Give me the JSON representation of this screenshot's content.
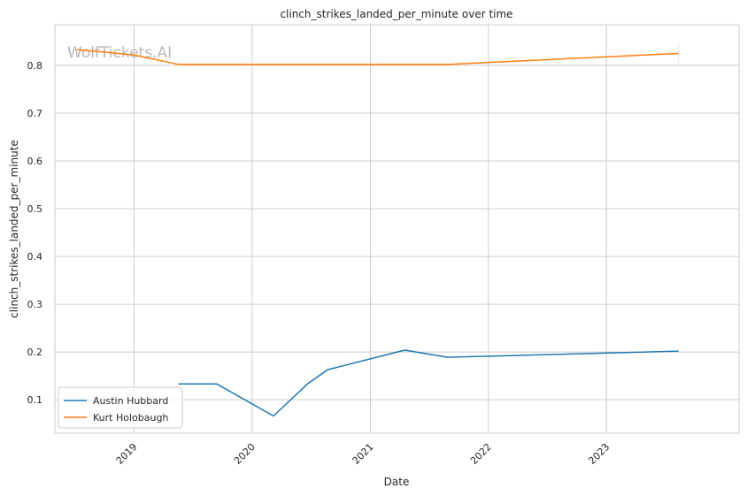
{
  "watermark": "WolfTickets.AI",
  "chart_data": {
    "type": "line",
    "title": "clinch_strikes_landed_per_minute over time",
    "xlabel": "Date",
    "ylabel": "clinch_strikes_landed_per_minute",
    "x_ticks": [
      "2019",
      "2020",
      "2021",
      "2022",
      "2023"
    ],
    "y_ticks": [
      "0.1",
      "0.2",
      "0.3",
      "0.4",
      "0.5",
      "0.6",
      "0.7",
      "0.8"
    ],
    "xlim": [
      "2018-05-01",
      "2024-02-15"
    ],
    "ylim": [
      0.03,
      0.885
    ],
    "grid": true,
    "legend_position": "lower-left",
    "series": [
      {
        "name": "Austin Hubbard",
        "color": "#1f77b4",
        "points": [
          {
            "x": "2019-05-18",
            "y": 0.133
          },
          {
            "x": "2019-09-14",
            "y": 0.133
          },
          {
            "x": "2020-03-07",
            "y": 0.066
          },
          {
            "x": "2020-06-20",
            "y": 0.133
          },
          {
            "x": "2020-08-22",
            "y": 0.163
          },
          {
            "x": "2021-04-17",
            "y": 0.204
          },
          {
            "x": "2021-08-28",
            "y": 0.189
          },
          {
            "x": "2023-08-12",
            "y": 0.202
          }
        ]
      },
      {
        "name": "Kurt Holobaugh",
        "color": "#ff7f0e",
        "points": [
          {
            "x": "2018-07-07",
            "y": 0.833
          },
          {
            "x": "2018-12-29",
            "y": 0.822
          },
          {
            "x": "2019-05-18",
            "y": 0.802
          },
          {
            "x": "2021-08-28",
            "y": 0.802
          },
          {
            "x": "2023-08-12",
            "y": 0.825
          }
        ]
      }
    ]
  }
}
